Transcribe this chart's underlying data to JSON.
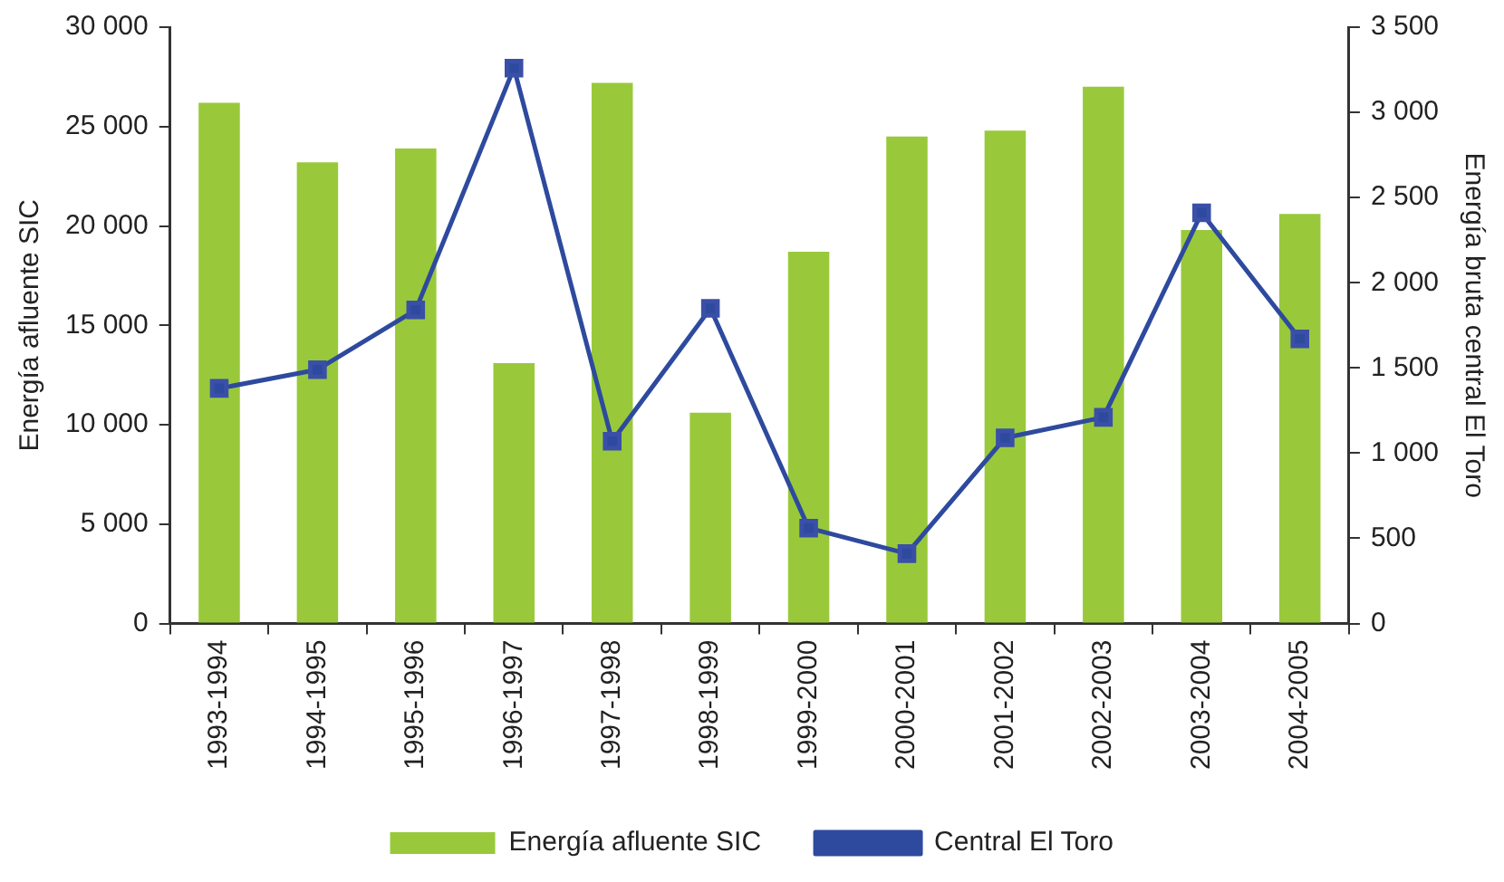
{
  "chart_data": {
    "type": "bar",
    "categories": [
      "1993-1994",
      "1994-1995",
      "1995-1996",
      "1996-1997",
      "1997-1998",
      "1998-1999",
      "1999-2000",
      "2000-2001",
      "2001-2002",
      "2002-2003",
      "2003-2004",
      "2004-2005"
    ],
    "series": [
      {
        "name": "Energía afluente SIC",
        "color": "#99c93b",
        "values": [
          26200,
          23200,
          23900,
          13100,
          27200,
          10600,
          18700,
          24500,
          24800,
          27000,
          19800,
          20600
        ]
      },
      {
        "name": "Central El Toro",
        "type": "line",
        "axis": "y2",
        "color": "#2e4a9e",
        "marker": "square",
        "values": [
          1380,
          1490,
          1840,
          3260,
          1070,
          1850,
          560,
          410,
          1090,
          1210,
          2410,
          1670
        ]
      }
    ],
    "ylabel": "Energía afluente SIC",
    "y2label": "Energía bruta central El Toro",
    "ylim": [
      0,
      30000
    ],
    "yticks": [
      0,
      {
        "value": 5000,
        "label": "5 000"
      },
      {
        "value": 10000,
        "label": "10 000"
      },
      {
        "value": 15000,
        "label": "15 000"
      },
      {
        "value": 20000,
        "label": "20 000"
      },
      {
        "value": 25000,
        "label": "25 000"
      },
      {
        "value": 30000,
        "label": "30 000"
      }
    ],
    "y2lim": [
      0,
      3500
    ],
    "y2ticks": [
      0,
      500,
      {
        "value": 1000,
        "label": "1 000"
      },
      {
        "value": 1500,
        "label": "1 500"
      },
      {
        "value": 2000,
        "label": "2 000"
      },
      {
        "value": 2500,
        "label": "2 500"
      },
      {
        "value": 3000,
        "label": "3 000"
      },
      {
        "value": 3500,
        "label": "3 500"
      }
    ],
    "grid": false,
    "legend": "bottom"
  }
}
